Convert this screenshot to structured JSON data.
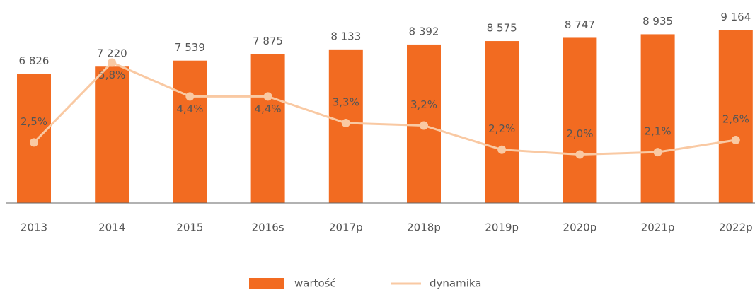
{
  "chart_data": {
    "type": "bar",
    "categories": [
      "2013",
      "2014",
      "2015",
      "2016s",
      "2017p",
      "2018p",
      "2019p",
      "2020p",
      "2021p",
      "2022p"
    ],
    "ylim": [
      0,
      10000
    ],
    "y2lim": [
      0,
      7.8
    ],
    "series": [
      {
        "name": "wartość",
        "type": "bar",
        "color": "#f26b21",
        "values": [
          6826,
          7220,
          7539,
          7875,
          8133,
          8392,
          8575,
          8747,
          8935,
          9164
        ],
        "value_labels": [
          "6 826",
          "7 220",
          "7 539",
          "7 875",
          "8 133",
          "8 392",
          "8 575",
          "8 747",
          "8 935",
          "9 164"
        ]
      },
      {
        "name": "dynamika",
        "type": "line",
        "axis": "y2",
        "color": "#f9c9a3",
        "values": [
          2.5,
          5.8,
          4.4,
          4.4,
          3.3,
          3.2,
          2.2,
          2.0,
          2.1,
          2.6
        ],
        "value_labels": [
          "2,5%",
          "5,8%",
          "4,4%",
          "4,4%",
          "3,3%",
          "3,2%",
          "2,2%",
          "2,0%",
          "2,1%",
          "2,6%"
        ]
      }
    ]
  }
}
